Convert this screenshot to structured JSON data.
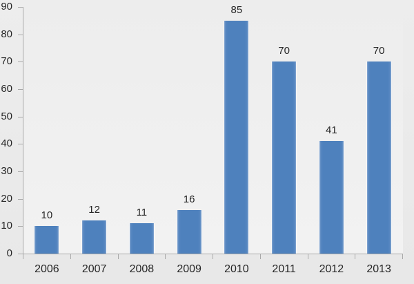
{
  "chart_data": {
    "type": "bar",
    "title": "",
    "xlabel": "",
    "ylabel": "",
    "categories": [
      "2006",
      "2007",
      "2008",
      "2009",
      "2010",
      "2011",
      "2012",
      "2013"
    ],
    "values": [
      10,
      12,
      11,
      16,
      85,
      70,
      41,
      70
    ],
    "data_labels": true,
    "ylim": [
      0,
      90
    ],
    "yticks": [
      0,
      10,
      20,
      30,
      40,
      50,
      60,
      70,
      80,
      90
    ],
    "grid": false,
    "legend": "none",
    "colors": {
      "bar": "#4E81BD",
      "bar_edge_highlight": "#86A7D1",
      "bar_edge_mid": "#5787C1",
      "axis": "#A8A8A8",
      "text": "#262626",
      "background_top": "#EDEDED",
      "background_bottom": "#E8E8E8",
      "plot_top": "#EDEDED",
      "plot_bottom": "#F2F2F2"
    }
  }
}
